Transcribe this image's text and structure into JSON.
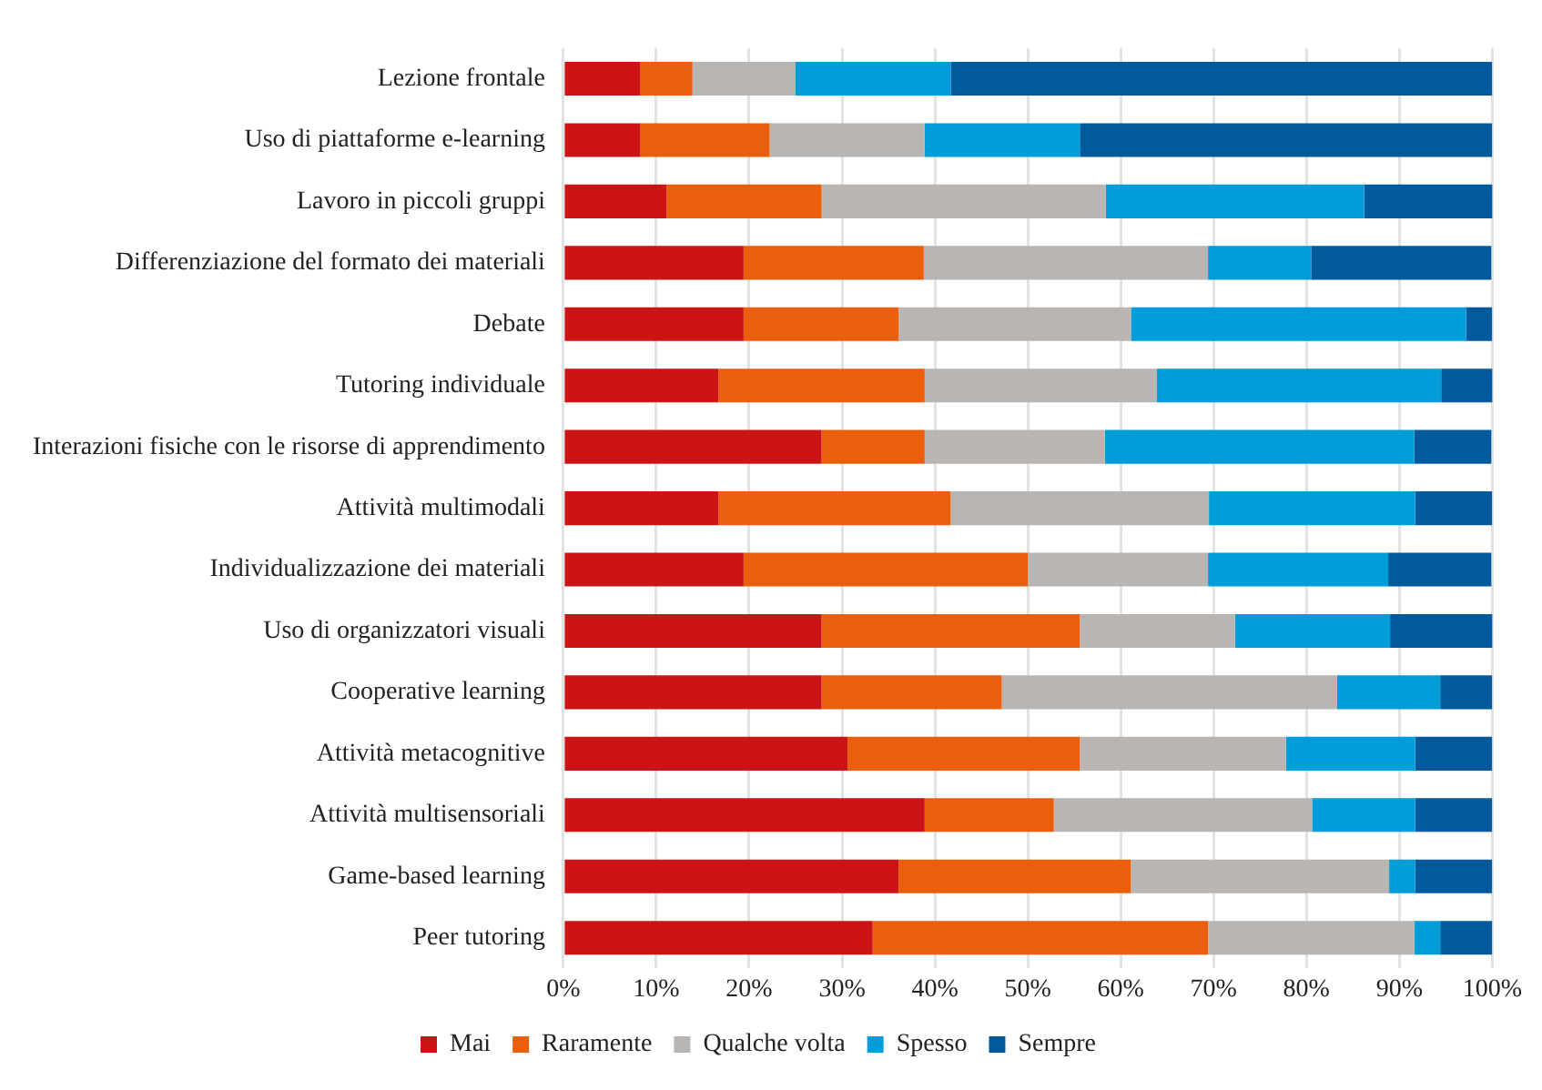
{
  "chart_data": {
    "type": "bar",
    "orientation": "horizontal",
    "stacked": true,
    "categories": [
      "Lezione frontale",
      "Uso di piattaforme e-learning",
      "Lavoro in piccoli gruppi",
      "Differenziazione del formato dei materiali",
      "Debate",
      "Tutoring individuale",
      "Interazioni fisiche con le risorse di apprendimento",
      "Attività multimodali",
      "Individualizzazione dei materiali",
      "Uso di organizzatori visuali",
      "Cooperative learning",
      "Attività metacognitive",
      "Attività multisensoriali",
      "Game-based learning",
      "Peer tutoring"
    ],
    "series": [
      {
        "name": "Mai",
        "color": "#cc1417",
        "values": [
          8.3,
          8.3,
          11.1,
          19.4,
          19.4,
          16.7,
          27.8,
          16.7,
          19.4,
          27.8,
          27.8,
          30.6,
          38.9,
          36.1,
          33.3
        ]
      },
      {
        "name": "Raramente",
        "color": "#eb5e0b",
        "values": [
          5.6,
          13.9,
          16.7,
          19.4,
          16.7,
          22.2,
          11.1,
          25,
          30.6,
          27.8,
          19.4,
          25,
          13.9,
          25,
          36.1
        ]
      },
      {
        "name": "Qualche volta",
        "color": "#b8b5b3",
        "values": [
          11.1,
          16.7,
          30.6,
          30.6,
          25,
          25,
          19.4,
          27.8,
          19.4,
          16.7,
          36.1,
          22.2,
          27.8,
          27.8,
          22.2
        ]
      },
      {
        "name": "Spesso",
        "color": "#009dd9",
        "values": [
          16.7,
          16.7,
          27.8,
          11.1,
          36.1,
          30.6,
          33.3,
          22.2,
          19.4,
          16.7,
          11.1,
          13.9,
          11.1,
          2.8,
          2.8
        ]
      },
      {
        "name": "Sempre",
        "color": "#005a9b",
        "values": [
          58.3,
          44.4,
          13.9,
          19.4,
          2.8,
          5.6,
          8.3,
          8.3,
          11.1,
          11.1,
          5.6,
          8.3,
          8.3,
          8.3,
          5.6
        ]
      }
    ],
    "xlim": [
      0,
      100
    ],
    "xticks": [
      {
        "value": 0,
        "label": "0%"
      },
      {
        "value": 10,
        "label": "10%"
      },
      {
        "value": 20,
        "label": "20%"
      },
      {
        "value": 30,
        "label": "30%"
      },
      {
        "value": 40,
        "label": "40%"
      },
      {
        "value": 50,
        "label": "50%"
      },
      {
        "value": 60,
        "label": "60%"
      },
      {
        "value": 70,
        "label": "70%"
      },
      {
        "value": 80,
        "label": "80%"
      },
      {
        "value": 90,
        "label": "90%"
      },
      {
        "value": 100,
        "label": "100%"
      }
    ],
    "grid": "x",
    "legend": "bottom"
  }
}
